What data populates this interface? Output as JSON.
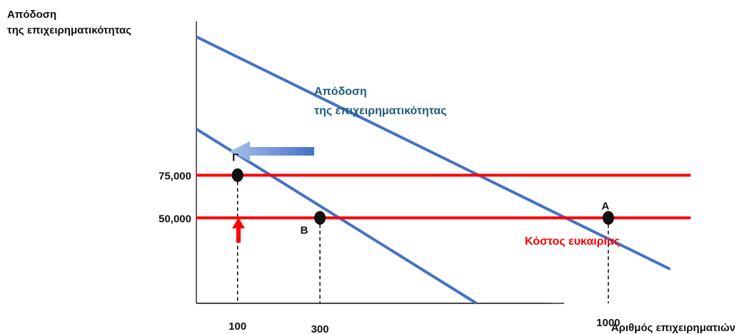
{
  "chart_data": {
    "type": "line",
    "ylabel_lines": [
      "Απόδοση",
      "της επιχειρηματικότητας"
    ],
    "xlabel": "Αριθμός επιχειρηματιών",
    "curve_label_lines": [
      "Απόδοση",
      "της επιχειρηματικότητας"
    ],
    "cost_label": "Κόστος ευκαιρίας",
    "y_ticks": [
      {
        "value": 75000,
        "label": "75,000"
      },
      {
        "value": 50000,
        "label": "50,000"
      }
    ],
    "x_ticks": [
      {
        "value": 100,
        "label": "100"
      },
      {
        "value": 300,
        "label": "300"
      },
      {
        "value": 1000,
        "label": "1000"
      }
    ],
    "series": [
      {
        "role": "return-original",
        "color": "#4472C4",
        "points": [
          [
            0,
            156000
          ],
          [
            1150,
            20000
          ]
        ]
      },
      {
        "role": "return-shifted",
        "color": "#4472C4",
        "points": [
          [
            0,
            102000
          ],
          [
            680,
            0
          ]
        ]
      },
      {
        "role": "opportunity-cost",
        "color": "#FF0000",
        "points": [
          [
            0,
            75000
          ],
          [
            1200,
            75000
          ]
        ]
      },
      {
        "role": "opportunity-cost",
        "color": "#FF0000",
        "points": [
          [
            0,
            50000
          ],
          [
            1200,
            50000
          ]
        ]
      }
    ],
    "points": [
      {
        "label": "Γ",
        "x": 100,
        "y": 75000
      },
      {
        "label": "Β",
        "x": 300,
        "y": 50000
      },
      {
        "label": "Α",
        "x": 1000,
        "y": 50000
      }
    ],
    "arrows": [
      {
        "direction": "left",
        "color": "#4472C4"
      },
      {
        "direction": "up",
        "color": "#FF0000"
      }
    ],
    "colors": {
      "demand": "#4472C4",
      "cost": "#FF0000",
      "curve_label": "#1F5C7A"
    },
    "xlim": [
      0,
      1260
    ],
    "ylim": [
      0,
      165000
    ]
  }
}
